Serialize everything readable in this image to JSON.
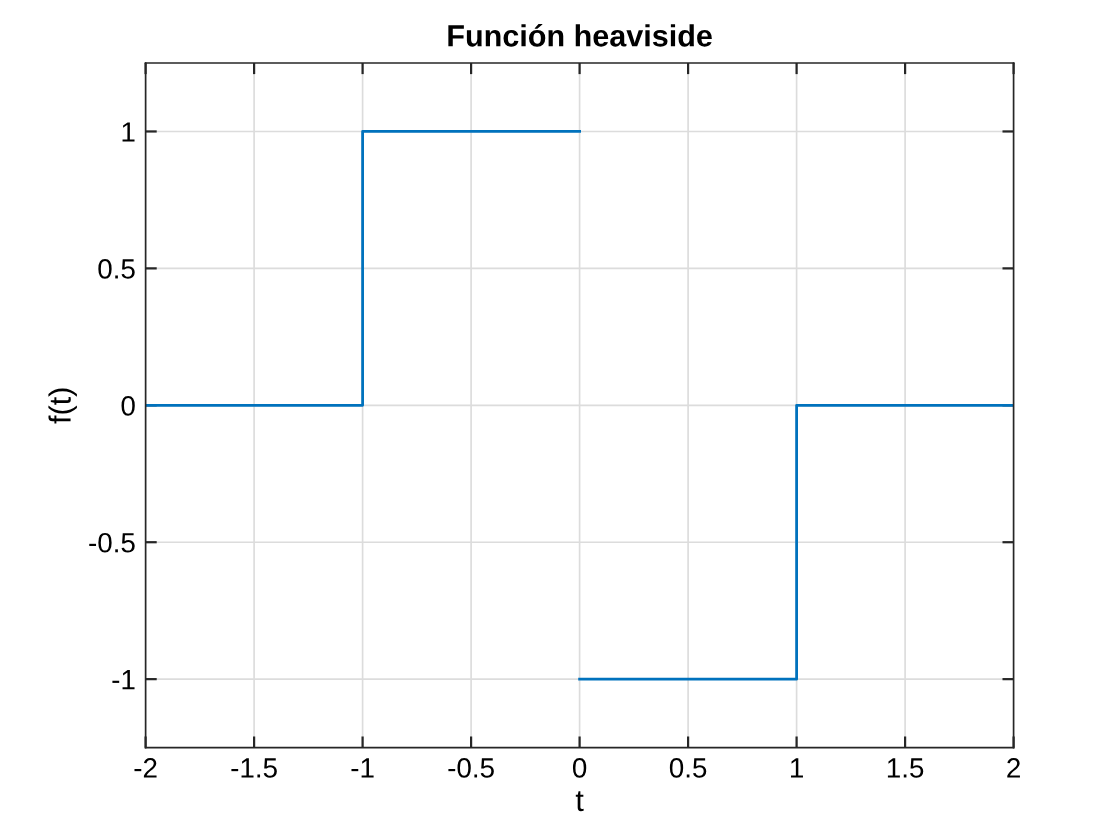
{
  "chart_data": {
    "type": "line",
    "title": "Función heaviside",
    "xlabel": "t",
    "ylabel": "f(t)",
    "series": [
      {
        "color": "#0072bd",
        "x": [
          -2,
          -1,
          -1,
          0
        ],
        "values": [
          0,
          0,
          1,
          1
        ]
      },
      {
        "color": "#0072bd",
        "x": [
          0,
          1,
          1,
          2
        ],
        "values": [
          -1,
          -1,
          0,
          0
        ]
      }
    ],
    "xlim": [
      -2,
      2
    ],
    "ylim": [
      -1.25,
      1.25
    ],
    "xticks": [
      -2,
      -1.5,
      -1,
      -0.5,
      0,
      0.5,
      1,
      1.5,
      2
    ],
    "yticks": [
      -1,
      -0.5,
      0,
      0.5,
      1
    ],
    "grid": true,
    "legend": false,
    "marker": "none",
    "line_style": "solid"
  }
}
